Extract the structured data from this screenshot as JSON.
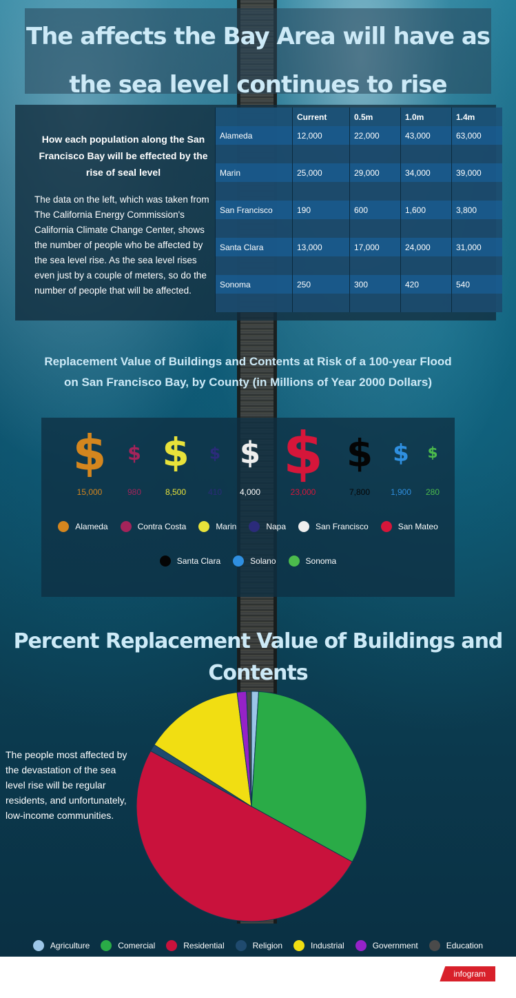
{
  "title": "The affects the Bay Area will have as the sea level continues to rise",
  "intro": {
    "heading": "How  each population along the San Francisco Bay  will be effected by the rise of seal level",
    "body": "The data on the left, which was taken from The California Energy Commission's California Climate Change Center,  shows the  number of people who be affected by the sea level rise. As the sea level rises even just by a couple of meters, so do the number of people that will be affected."
  },
  "population_table": {
    "headers": [
      "",
      "Current",
      "0.5m",
      "1.0m",
      "1.4m"
    ],
    "rows": [
      [
        "Alameda",
        "12,000",
        "22,000",
        "43,000",
        "63,000"
      ],
      [
        "Marin",
        "25,000",
        "29,000",
        "34,000",
        "39,000"
      ],
      [
        "San Francisco",
        "190",
        "600",
        "1,600",
        "3,800"
      ],
      [
        "Santa Clara",
        "13,000",
        "17,000",
        "24,000",
        "31,000"
      ],
      [
        "Sonoma",
        "250",
        "300",
        "420",
        "540"
      ]
    ]
  },
  "chart_data": [
    {
      "type": "pictogram",
      "title": "Replacement Value of Buildings and Contents at Risk of a 100-year Flood on San Francisco Bay, by County (in Millions of Year 2000 Dollars)",
      "icon": "dollar-icon",
      "categories": [
        "Alameda",
        "Contra Costa",
        "Marin",
        "Napa",
        "San Francisco",
        "San Mateo",
        "Santa Clara",
        "Solano",
        "Sonoma"
      ],
      "values": [
        15000,
        980,
        8500,
        410,
        4000,
        23000,
        7800,
        1900,
        280
      ],
      "value_labels": [
        "15,000",
        "980",
        "8,500",
        "410",
        "4,000",
        "23,000",
        "7,800",
        "1,900",
        "280"
      ],
      "colors": [
        "#d4861e",
        "#a3245a",
        "#e8e23a",
        "#2b2b7a",
        "#eeeeee",
        "#d6163a",
        "#050505",
        "#2f8fe0",
        "#4cbb4c"
      ],
      "legend": "bottom"
    },
    {
      "type": "pie",
      "title": "Percent Replacement Value of Buildings and Contents",
      "categories": [
        "Agriculture",
        "Comercial",
        "Residential",
        "Religion",
        "Industrial",
        "Government",
        "Education"
      ],
      "values": [
        1,
        32,
        50,
        1,
        14,
        1.3,
        0.7
      ],
      "colors": [
        "#9cc6e8",
        "#2aab47",
        "#c9123c",
        "#1f4a6e",
        "#f1de12",
        "#9622c8",
        "#4a4a4a"
      ],
      "legend": "bottom"
    }
  ],
  "pie_note": "The people most affected by the devastation of the sea level rise will be regular residents, and unfortunately, low-income communities.",
  "footer": {
    "brand": "infogram"
  }
}
